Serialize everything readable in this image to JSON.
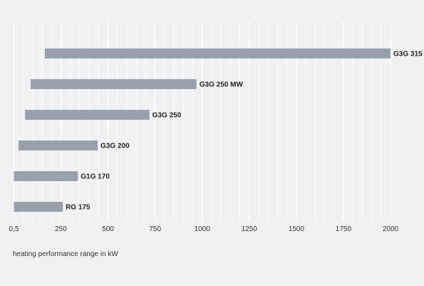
{
  "chart_data": {
    "type": "bar",
    "orientation": "horizontal",
    "title": "",
    "xlabel": "heating performance range in kW",
    "ylabel": "",
    "xlim": [
      0.5,
      2000
    ],
    "xticks": [
      {
        "value": 0.5,
        "label": "0,5"
      },
      {
        "value": 250,
        "label": "250"
      },
      {
        "value": 500,
        "label": "500"
      },
      {
        "value": 750,
        "label": "750"
      },
      {
        "value": 1000,
        "label": "1000"
      },
      {
        "value": 1250,
        "label": "1250"
      },
      {
        "value": 1500,
        "label": "1500"
      },
      {
        "value": 1750,
        "label": "1750"
      },
      {
        "value": 2000,
        "label": "2000"
      }
    ],
    "grid": true,
    "bars": [
      {
        "label": "G3G 315",
        "start": 165,
        "end": 2000
      },
      {
        "label": "G3G 250 MW",
        "start": 90,
        "end": 970
      },
      {
        "label": "G3G 250",
        "start": 60,
        "end": 720
      },
      {
        "label": "G3G 200",
        "start": 25,
        "end": 445
      },
      {
        "label": "G1G 170",
        "start": 0.5,
        "end": 340
      },
      {
        "label": "RG 175",
        "start": 0.5,
        "end": 260
      }
    ],
    "colors": {
      "bar": "#97a0ab",
      "background": "#f0f1f3",
      "grid": "#ffffff"
    }
  }
}
